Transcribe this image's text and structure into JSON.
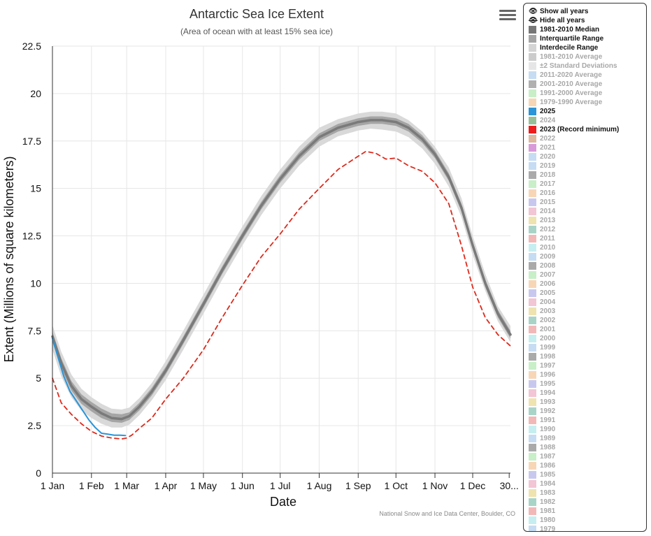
{
  "chart_data": {
    "type": "line",
    "title": "Antarctic Sea Ice Extent",
    "subtitle": "(Area of ocean with at least 15% sea ice)",
    "xlabel": "Date",
    "ylabel": "Extent (Millions of square kilometers)",
    "ylim": [
      0,
      22.5
    ],
    "xlim": [
      1,
      365
    ],
    "y_ticks": [
      "0",
      "2.5",
      "5",
      "7.5",
      "10",
      "12.5",
      "15",
      "17.5",
      "20",
      "22.5"
    ],
    "x_tick_labels": [
      "1 Jan",
      "1 Feb",
      "1 Mar",
      "1 Apr",
      "1 May",
      "1 Jun",
      "1 Jul",
      "1 Aug",
      "1 Sep",
      "1 Oct",
      "1 Nov",
      "1 Dec",
      "30..."
    ],
    "x_tick_days": [
      1,
      32,
      60,
      91,
      121,
      152,
      182,
      213,
      244,
      274,
      305,
      335,
      364
    ],
    "grid": true,
    "credit": "National Snow and Ice Data Center, Boulder, CO",
    "series": [
      {
        "name": "1981-2010 Median",
        "x": [
          1,
          8,
          16,
          24,
          32,
          40,
          48,
          56,
          62,
          70,
          80,
          91,
          105,
          121,
          136,
          152,
          167,
          182,
          197,
          213,
          228,
          244,
          254,
          263,
          274,
          284,
          295,
          305,
          316,
          326,
          335,
          345,
          355,
          365
        ],
        "values": [
          7.2,
          5.8,
          4.6,
          3.9,
          3.5,
          3.15,
          2.9,
          2.85,
          3.0,
          3.5,
          4.3,
          5.4,
          7.0,
          8.9,
          10.7,
          12.5,
          14.1,
          15.5,
          16.7,
          17.7,
          18.2,
          18.5,
          18.6,
          18.6,
          18.5,
          18.2,
          17.6,
          16.8,
          15.6,
          14.0,
          12.0,
          10.0,
          8.4,
          7.3
        ]
      },
      {
        "name": "2023 (Record minimum)",
        "x": [
          1,
          8,
          16,
          24,
          32,
          40,
          48,
          56,
          60,
          64,
          70,
          80,
          91,
          105,
          121,
          136,
          152,
          167,
          182,
          197,
          213,
          228,
          244,
          250,
          258,
          266,
          274,
          284,
          295,
          305,
          316,
          326,
          335,
          345,
          355,
          365
        ],
        "values": [
          5.0,
          3.7,
          3.1,
          2.6,
          2.2,
          1.95,
          1.85,
          1.8,
          1.85,
          2.0,
          2.35,
          2.9,
          3.9,
          5.0,
          6.5,
          8.2,
          9.9,
          11.4,
          12.6,
          13.9,
          15.0,
          16.0,
          16.7,
          16.95,
          16.85,
          16.55,
          16.6,
          16.2,
          15.9,
          15.3,
          14.2,
          12.0,
          9.8,
          8.2,
          7.3,
          6.7
        ]
      },
      {
        "name": "2025",
        "x": [
          1,
          5,
          10,
          15,
          20,
          25,
          30,
          35,
          40,
          45,
          50,
          55,
          59
        ],
        "values": [
          7.1,
          6.2,
          5.1,
          4.3,
          3.8,
          3.3,
          2.8,
          2.4,
          2.1,
          2.05,
          2.0,
          2.0,
          1.98
        ]
      }
    ],
    "ranges": [
      {
        "name": "Interdecile Range",
        "x": [
          1,
          8,
          16,
          24,
          32,
          40,
          48,
          56,
          62,
          70,
          80,
          91,
          105,
          121,
          136,
          152,
          167,
          182,
          197,
          213,
          228,
          244,
          254,
          263,
          274,
          284,
          295,
          305,
          316,
          326,
          335,
          345,
          355,
          365
        ],
        "low": [
          6.5,
          5.1,
          4.0,
          3.3,
          2.9,
          2.6,
          2.4,
          2.4,
          2.55,
          3.05,
          3.85,
          4.9,
          6.5,
          8.4,
          10.2,
          12.0,
          13.6,
          15.0,
          16.2,
          17.2,
          17.75,
          18.05,
          18.15,
          18.1,
          18.0,
          17.7,
          17.1,
          16.3,
          15.1,
          13.5,
          11.5,
          9.6,
          8.0,
          6.9
        ],
        "high": [
          7.8,
          6.4,
          5.2,
          4.45,
          4.0,
          3.65,
          3.4,
          3.35,
          3.45,
          3.95,
          4.75,
          5.9,
          7.5,
          9.4,
          11.2,
          13.0,
          14.6,
          16.0,
          17.2,
          18.2,
          18.65,
          18.95,
          19.05,
          19.05,
          18.95,
          18.6,
          18.0,
          17.2,
          16.1,
          14.5,
          12.5,
          10.5,
          8.8,
          7.75
        ]
      },
      {
        "name": "Interquartile Range",
        "x": [
          1,
          8,
          16,
          24,
          32,
          40,
          48,
          56,
          62,
          70,
          80,
          91,
          105,
          121,
          136,
          152,
          167,
          182,
          197,
          213,
          228,
          244,
          254,
          263,
          274,
          284,
          295,
          305,
          316,
          326,
          335,
          345,
          355,
          365
        ],
        "low": [
          6.9,
          5.5,
          4.35,
          3.65,
          3.25,
          2.9,
          2.7,
          2.65,
          2.8,
          3.3,
          4.1,
          5.2,
          6.8,
          8.7,
          10.5,
          12.3,
          13.9,
          15.3,
          16.5,
          17.5,
          18.0,
          18.3,
          18.4,
          18.4,
          18.3,
          18.0,
          17.4,
          16.6,
          15.4,
          13.8,
          11.8,
          9.8,
          8.2,
          7.1
        ],
        "high": [
          7.45,
          6.05,
          4.85,
          4.15,
          3.75,
          3.4,
          3.15,
          3.1,
          3.2,
          3.7,
          4.5,
          5.6,
          7.2,
          9.1,
          10.9,
          12.7,
          14.3,
          15.7,
          16.9,
          17.9,
          18.4,
          18.7,
          18.8,
          18.8,
          18.7,
          18.4,
          17.8,
          17.0,
          15.8,
          14.2,
          12.2,
          10.2,
          8.6,
          7.5
        ]
      }
    ],
    "legend": {
      "show_all": "Show all years",
      "hide_all": "Hide all years",
      "items": [
        {
          "label": "1981-2010 Median",
          "color": "#777777",
          "active": true
        },
        {
          "label": "Interquartile Range",
          "color": "#a5a5a5",
          "active": true
        },
        {
          "label": "Interdecile Range",
          "color": "#d4d4d4",
          "active": true
        },
        {
          "label": "1981-2010 Average",
          "color": "#cccccc",
          "active": false
        },
        {
          "label": "±2 Standard Deviations",
          "color": "#e6e6e6",
          "active": false
        },
        {
          "label": "2011-2020 Average",
          "color": "#c6dcf2",
          "active": false
        },
        {
          "label": "2001-2010 Average",
          "color": "#b0b0b0",
          "active": false
        },
        {
          "label": "1991-2000 Average",
          "color": "#c8efc8",
          "active": false
        },
        {
          "label": "1979-1990 Average",
          "color": "#f7d6b6",
          "active": false
        },
        {
          "label": "2025",
          "color": "#2a95d8",
          "active": true
        },
        {
          "label": "2024",
          "color": "#98c098",
          "active": false
        },
        {
          "label": "2023 (Record minimum)",
          "color": "#ee1c1c",
          "active": true
        },
        {
          "label": "2022",
          "color": "#dfb8a0",
          "active": false
        },
        {
          "label": "2021",
          "color": "#d99ad9",
          "active": false
        },
        {
          "label": "2020",
          "color": "#c6dcf2",
          "active": false
        },
        {
          "label": "2019",
          "color": "#c6dcf2",
          "active": false
        },
        {
          "label": "2018",
          "color": "#aaaaaa",
          "active": false
        },
        {
          "label": "2017",
          "color": "#c8efc8",
          "active": false
        },
        {
          "label": "2016",
          "color": "#f7d6b6",
          "active": false
        },
        {
          "label": "2015",
          "color": "#c8c8ef",
          "active": false
        },
        {
          "label": "2014",
          "color": "#f2c6d4",
          "active": false
        },
        {
          "label": "2013",
          "color": "#efe3b0",
          "active": false
        },
        {
          "label": "2012",
          "color": "#a8d4c8",
          "active": false
        },
        {
          "label": "2011",
          "color": "#f2b8b8",
          "active": false
        },
        {
          "label": "2010",
          "color": "#c6eef0",
          "active": false
        },
        {
          "label": "2009",
          "color": "#c6dcf2",
          "active": false
        },
        {
          "label": "2008",
          "color": "#aaaaaa",
          "active": false
        },
        {
          "label": "2007",
          "color": "#c8efc8",
          "active": false
        },
        {
          "label": "2006",
          "color": "#f7d6b6",
          "active": false
        },
        {
          "label": "2005",
          "color": "#c8c8ef",
          "active": false
        },
        {
          "label": "2004",
          "color": "#f2c6d4",
          "active": false
        },
        {
          "label": "2003",
          "color": "#efe3b0",
          "active": false
        },
        {
          "label": "2002",
          "color": "#a8d4c8",
          "active": false
        },
        {
          "label": "2001",
          "color": "#f2b8b8",
          "active": false
        },
        {
          "label": "2000",
          "color": "#c6eef0",
          "active": false
        },
        {
          "label": "1999",
          "color": "#c6dcf2",
          "active": false
        },
        {
          "label": "1998",
          "color": "#aaaaaa",
          "active": false
        },
        {
          "label": "1997",
          "color": "#c8efc8",
          "active": false
        },
        {
          "label": "1996",
          "color": "#f7d6b6",
          "active": false
        },
        {
          "label": "1995",
          "color": "#c8c8ef",
          "active": false
        },
        {
          "label": "1994",
          "color": "#f2c6d4",
          "active": false
        },
        {
          "label": "1993",
          "color": "#efe3b0",
          "active": false
        },
        {
          "label": "1992",
          "color": "#a8d4c8",
          "active": false
        },
        {
          "label": "1991",
          "color": "#f2b8b8",
          "active": false
        },
        {
          "label": "1990",
          "color": "#c6eef0",
          "active": false
        },
        {
          "label": "1989",
          "color": "#c6dcf2",
          "active": false
        },
        {
          "label": "1988",
          "color": "#aaaaaa",
          "active": false
        },
        {
          "label": "1987",
          "color": "#c8efc8",
          "active": false
        },
        {
          "label": "1986",
          "color": "#f7d6b6",
          "active": false
        },
        {
          "label": "1985",
          "color": "#c8c8ef",
          "active": false
        },
        {
          "label": "1984",
          "color": "#f2c6d4",
          "active": false
        },
        {
          "label": "1983",
          "color": "#efe3b0",
          "active": false
        },
        {
          "label": "1982",
          "color": "#a8d4c8",
          "active": false
        },
        {
          "label": "1981",
          "color": "#f2b8b8",
          "active": false
        },
        {
          "label": "1980",
          "color": "#c6eef0",
          "active": false
        },
        {
          "label": "1979",
          "color": "#c6dcf2",
          "active": false
        }
      ]
    }
  },
  "colors": {
    "median": "#7a7a7a",
    "interquartile": "#a5a5a5",
    "interdecile": "#d9d9d9",
    "record": "#dd2a1c",
    "current": "#2a95d8",
    "grid": "#e6e6e6",
    "axis": "#333333"
  }
}
